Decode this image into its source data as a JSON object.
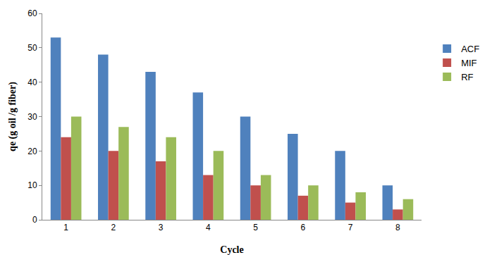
{
  "chart_data": {
    "type": "bar",
    "x_label": "Cycle",
    "y_label": "qe (g oil /g fiber)",
    "categories": [
      "1",
      "2",
      "3",
      "4",
      "5",
      "6",
      "7",
      "8"
    ],
    "series": [
      {
        "name": "ACF",
        "color": "#4F81BD",
        "values": [
          53,
          48,
          43,
          37,
          30,
          25,
          20,
          10
        ]
      },
      {
        "name": "MIF",
        "color": "#C0504D",
        "values": [
          24,
          20,
          17,
          13,
          10,
          7,
          5,
          3
        ]
      },
      {
        "name": "RF",
        "color": "#9BBB59",
        "values": [
          30,
          27,
          24,
          20,
          13,
          10,
          8,
          6
        ]
      }
    ],
    "ylim": [
      0,
      60
    ],
    "yticks": [
      0,
      10,
      20,
      30,
      40,
      50,
      60
    ],
    "grid": false,
    "legend": "right"
  }
}
